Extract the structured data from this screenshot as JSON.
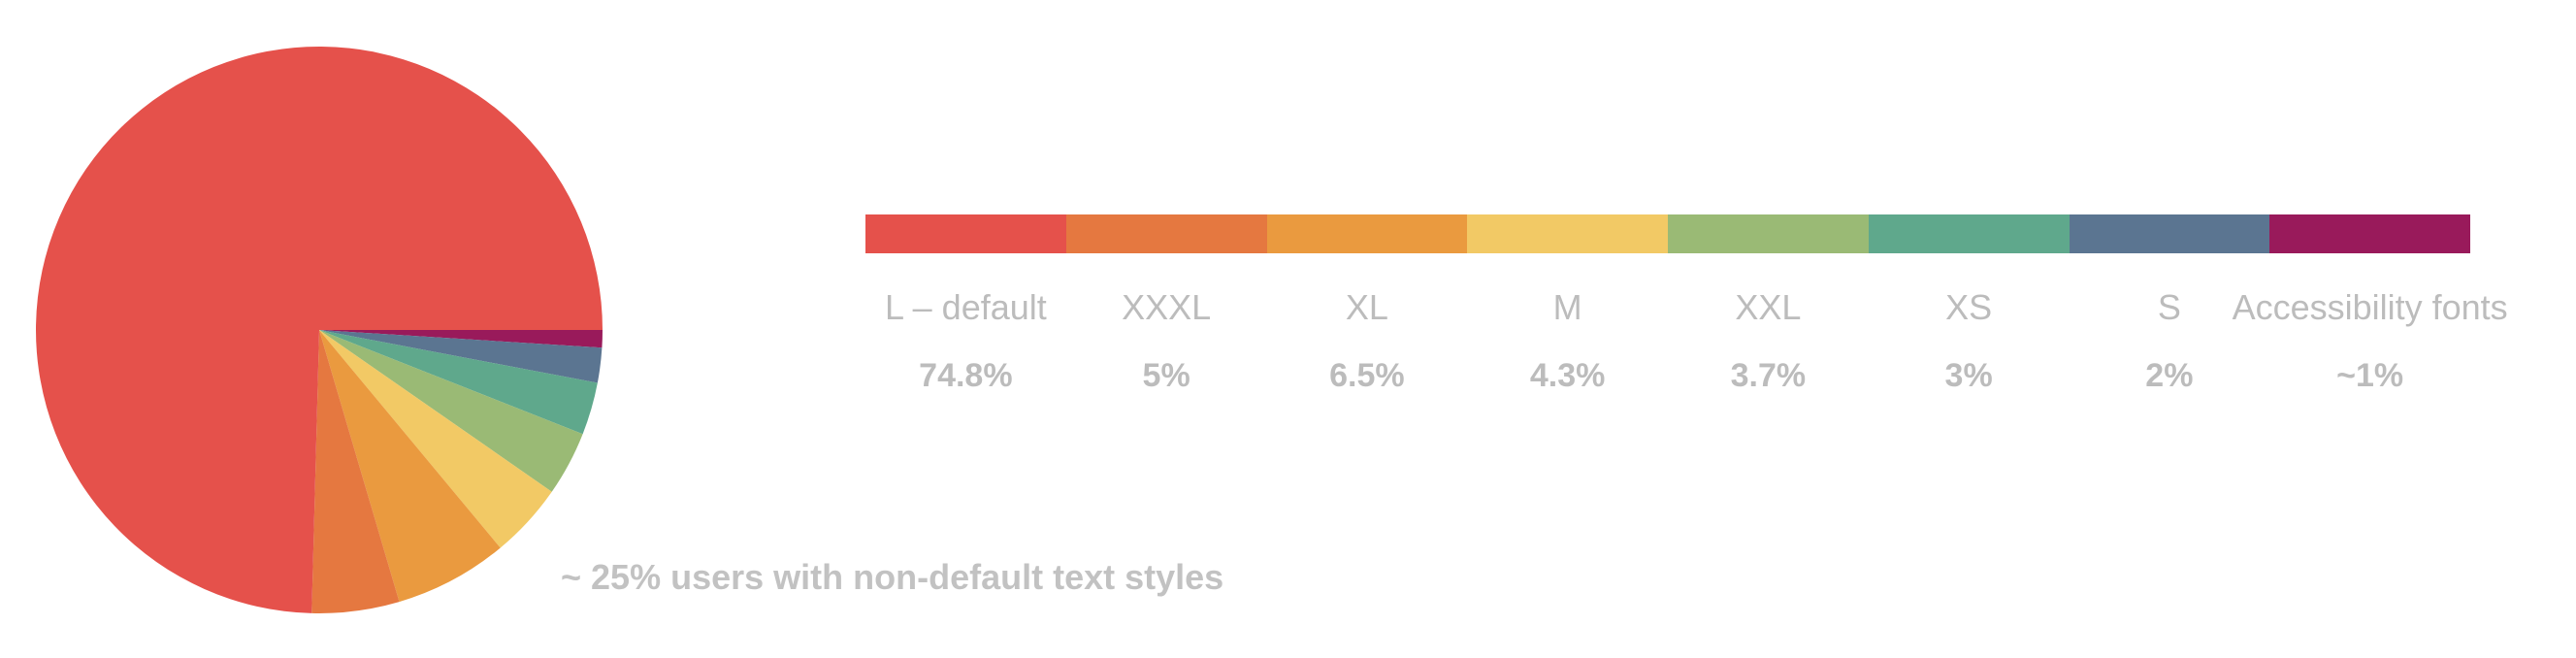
{
  "chart_data": {
    "type": "pie",
    "annotation": "~ 25% users with non-default text styles",
    "slices": [
      {
        "label": "L – default",
        "display": "74.8%",
        "value": 74.8,
        "color": "#e5514b"
      },
      {
        "label": "XXXL",
        "display": "5%",
        "value": 5,
        "color": "#e57840"
      },
      {
        "label": "XL",
        "display": "6.5%",
        "value": 6.5,
        "color": "#ea9a3f"
      },
      {
        "label": "M",
        "display": "4.3%",
        "value": 4.3,
        "color": "#f2c965"
      },
      {
        "label": "XXL",
        "display": "3.7%",
        "value": 3.7,
        "color": "#9aba75"
      },
      {
        "label": "XS",
        "display": "3%",
        "value": 3,
        "color": "#5fa88c"
      },
      {
        "label": "S",
        "display": "2%",
        "value": 2,
        "color": "#5b7591"
      },
      {
        "label": "Accessibility fonts",
        "display": "~1%",
        "value": 1,
        "color": "#991a5b"
      }
    ],
    "pie_order": [
      "L – default",
      "XXXL",
      "XL",
      "M",
      "XXL",
      "XS",
      "S",
      "Accessibility fonts"
    ],
    "legend_position": "right",
    "grid": false
  }
}
